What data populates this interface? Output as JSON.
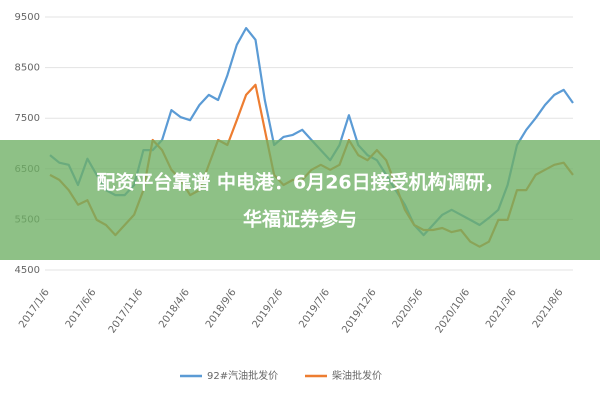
{
  "chart_data": {
    "type": "line",
    "categories": [
      "2017/1/6",
      null,
      null,
      null,
      null,
      "2017/6/6",
      null,
      null,
      null,
      null,
      "2017/11/6",
      null,
      null,
      null,
      null,
      "2018/4/6",
      null,
      null,
      null,
      null,
      "2018/9/6",
      null,
      null,
      null,
      null,
      "2019/2/6",
      null,
      null,
      null,
      null,
      "2019/7/6",
      null,
      null,
      null,
      null,
      "2019/12/6",
      null,
      null,
      null,
      null,
      "2020/5/6",
      null,
      null,
      null,
      null,
      "2020/10/6",
      null,
      null,
      null,
      null,
      "2021/3/6",
      null,
      null,
      null,
      null,
      "2021/8/6",
      null
    ],
    "series": [
      {
        "name": "92#汽油批发价",
        "color": "#5b9bd5",
        "values": [
          6770,
          6620,
          6580,
          6180,
          6700,
          6380,
          6080,
          5980,
          5980,
          6180,
          6870,
          6870,
          7070,
          7660,
          7520,
          7460,
          7760,
          7960,
          7860,
          8350,
          8950,
          9280,
          9050,
          7860,
          6970,
          7130,
          7170,
          7270,
          7070,
          6870,
          6670,
          6970,
          7560,
          6970,
          6770,
          6670,
          6380,
          6080,
          5790,
          5390,
          5190,
          5390,
          5590,
          5690,
          5590,
          5490,
          5390,
          5530,
          5690,
          6180,
          6970,
          7270,
          7500,
          7760,
          7960,
          8060,
          7800
        ]
      },
      {
        "name": "柴油批发价",
        "color": "#ed7d31",
        "values": [
          6380,
          6280,
          6080,
          5790,
          5880,
          5490,
          5390,
          5190,
          5390,
          5590,
          6080,
          7070,
          6870,
          6480,
          6280,
          5980,
          6080,
          6580,
          7070,
          6970,
          7460,
          7960,
          8160,
          7270,
          6380,
          6180,
          6280,
          6280,
          6480,
          6580,
          6480,
          6580,
          7070,
          6770,
          6670,
          6870,
          6670,
          6180,
          5690,
          5390,
          5290,
          5290,
          5330,
          5250,
          5290,
          5060,
          4960,
          5060,
          5490,
          5490,
          6080,
          6080,
          6380,
          6480,
          6580,
          6620,
          6380
        ]
      }
    ],
    "ylim": [
      4500,
      9500
    ],
    "yticks": [
      4500,
      5500,
      6500,
      7500,
      8500,
      9500
    ],
    "grid": true
  },
  "banner": {
    "lines": [
      "配资平台靠谱 中电港：6月26日接受机构调研，",
      "华福证券参与"
    ]
  }
}
